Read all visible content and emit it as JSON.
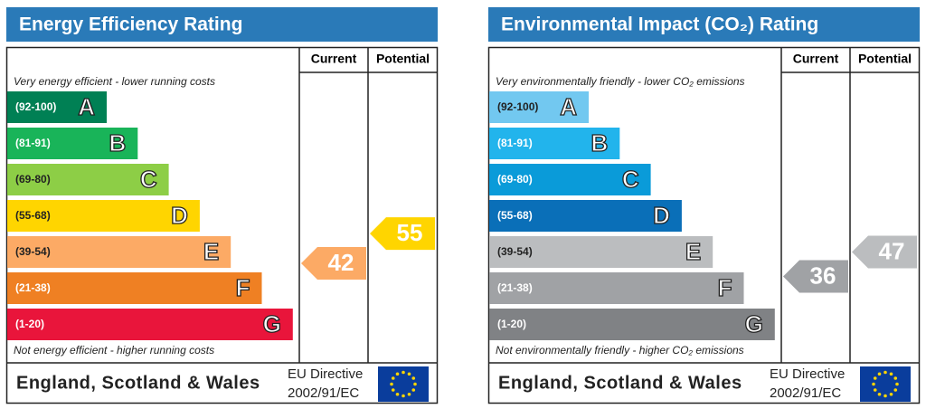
{
  "panels": [
    {
      "title": "Energy Efficiency Rating",
      "col_current": "Current",
      "col_potential": "Potential",
      "top_note": "Very energy efficient - lower running costs",
      "bottom_note": "Not energy efficient - higher running costs",
      "bands": [
        {
          "range": "(92-100)",
          "letter": "A",
          "color": "#008054"
        },
        {
          "range": "(81-91)",
          "letter": "B",
          "color": "#19b459"
        },
        {
          "range": "(69-80)",
          "letter": "C",
          "color": "#8dce46"
        },
        {
          "range": "(55-68)",
          "letter": "D",
          "color": "#ffd500"
        },
        {
          "range": "(39-54)",
          "letter": "E",
          "color": "#fcaa65"
        },
        {
          "range": "(21-38)",
          "letter": "F",
          "color": "#ef8023"
        },
        {
          "range": "(1-20)",
          "letter": "G",
          "color": "#e9153b"
        }
      ],
      "current": 42,
      "potential": 55,
      "footer": "England, Scotland & Wales",
      "directive": [
        "EU Directive",
        "2002/91/EC"
      ]
    },
    {
      "title": "Environmental Impact (CO₂) Rating",
      "col_current": "Current",
      "col_potential": "Potential",
      "top_note": "Very environmentally friendly - lower CO₂ emissions",
      "bottom_note": "Not environmentally friendly - higher CO₂ emissions",
      "bands": [
        {
          "range": "(92-100)",
          "letter": "A",
          "color": "#72c8f0"
        },
        {
          "range": "(81-91)",
          "letter": "B",
          "color": "#22b4ec"
        },
        {
          "range": "(69-80)",
          "letter": "C",
          "color": "#0a9bd9"
        },
        {
          "range": "(55-68)",
          "letter": "D",
          "color": "#0a6fb8"
        },
        {
          "range": "(39-54)",
          "letter": "E",
          "color": "#bbbdbf"
        },
        {
          "range": "(21-38)",
          "letter": "F",
          "color": "#a0a2a5"
        },
        {
          "range": "(1-20)",
          "letter": "G",
          "color": "#808285"
        }
      ],
      "current": 36,
      "potential": 47,
      "footer": "England, Scotland & Wales",
      "directive": [
        "EU Directive",
        "2002/91/EC"
      ]
    }
  ]
}
